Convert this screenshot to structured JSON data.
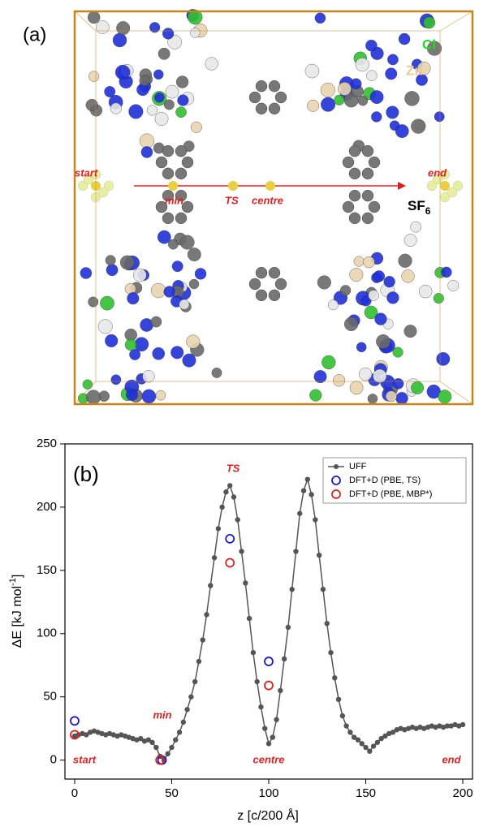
{
  "panel_a": {
    "label": "(a)",
    "elements": [
      "Cl",
      "Zn"
    ],
    "positions": [
      "start",
      "min",
      "TS",
      "centre",
      "end"
    ],
    "molecule": {
      "text": "SF",
      "subscript": "6"
    }
  },
  "chart_data": {
    "type": "line",
    "panel_label": "(b)",
    "x_label": "z [c/200 Å]",
    "y_label": {
      "text": "ΔE [kJ mol",
      "superscript": "-1",
      "close": "]"
    },
    "xlim": [
      -5,
      205
    ],
    "xticks": [
      0,
      50,
      100,
      150,
      200
    ],
    "ylim": [
      -15,
      250
    ],
    "yticks": [
      0,
      50,
      100,
      150,
      200,
      250
    ],
    "legend": "upper right",
    "annotations": [
      "TS",
      "min",
      "start",
      "centre",
      "end"
    ],
    "series": [
      {
        "name": "UFF",
        "color": "#555555",
        "style": "line-dot",
        "x": [
          0,
          2,
          4,
          6,
          8,
          10,
          12,
          14,
          16,
          18,
          20,
          22,
          24,
          26,
          28,
          30,
          32,
          34,
          36,
          38,
          40,
          42,
          44,
          46,
          48,
          50,
          52,
          54,
          56,
          58,
          60,
          62,
          64,
          66,
          68,
          70,
          72,
          74,
          76,
          78,
          80,
          82,
          84,
          86,
          88,
          90,
          92,
          94,
          96,
          98,
          100,
          102,
          104,
          106,
          108,
          110,
          112,
          114,
          116,
          118,
          120,
          122,
          124,
          126,
          128,
          130,
          132,
          134,
          136,
          138,
          140,
          142,
          144,
          146,
          148,
          150,
          152,
          154,
          156,
          158,
          160,
          162,
          164,
          166,
          168,
          170,
          172,
          174,
          176,
          178,
          180,
          182,
          184,
          186,
          188,
          190,
          192,
          194,
          196,
          198,
          200
        ],
        "values": [
          19,
          20,
          21,
          20,
          22,
          23,
          22,
          21,
          20,
          21,
          20,
          19,
          20,
          19,
          18,
          17,
          16,
          17,
          15,
          16,
          14,
          10,
          3,
          0,
          5,
          10,
          16,
          22,
          30,
          40,
          50,
          62,
          78,
          95,
          115,
          138,
          160,
          183,
          200,
          212,
          217,
          208,
          190,
          165,
          140,
          112,
          85,
          62,
          42,
          25,
          13,
          18,
          32,
          55,
          80,
          105,
          135,
          165,
          195,
          213,
          222,
          210,
          190,
          162,
          135,
          108,
          85,
          65,
          48,
          35,
          27,
          22,
          18,
          16,
          13,
          10,
          7,
          11,
          14,
          17,
          19,
          21,
          22,
          24,
          25,
          24,
          25,
          26,
          25,
          26,
          25,
          26,
          27,
          26,
          27,
          26,
          27,
          27,
          28,
          27,
          28
        ]
      },
      {
        "name": "DFT+D (PBE, TS)",
        "color": "#1a1acc",
        "style": "open-circle",
        "x": [
          0,
          45,
          80,
          100
        ],
        "values": [
          31,
          0,
          175,
          78
        ]
      },
      {
        "name": "DFT+D (PBE, MBP*)",
        "color": "#e02020",
        "style": "open-circle",
        "x": [
          0,
          44,
          80,
          100
        ],
        "values": [
          20,
          0,
          156,
          59
        ]
      }
    ]
  }
}
